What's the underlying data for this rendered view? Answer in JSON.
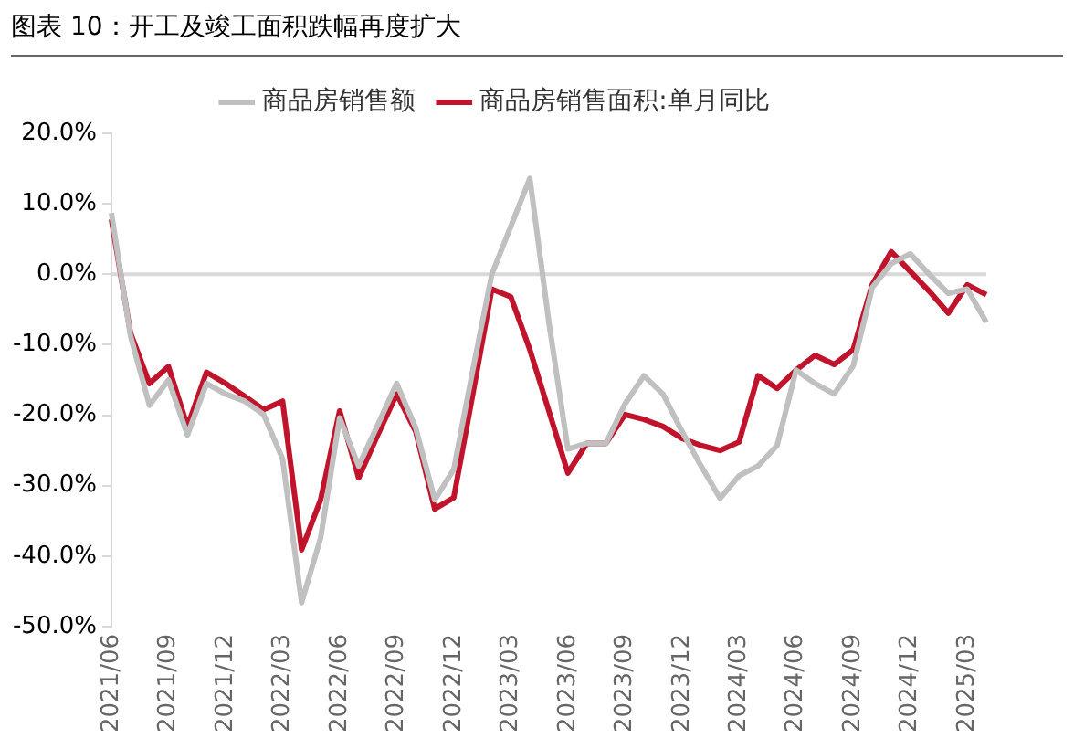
{
  "chart_data": {
    "type": "line",
    "title": "图表 10：开工及竣工面积跌幅再度扩大",
    "categories": [
      "2021/06",
      null,
      null,
      "2021/09",
      null,
      null,
      "2021/12",
      null,
      null,
      "2022/03",
      null,
      null,
      "2022/06",
      null,
      null,
      "2022/09",
      null,
      null,
      "2022/12",
      null,
      null,
      "2023/03",
      null,
      null,
      "2023/06",
      null,
      null,
      "2023/09",
      null,
      null,
      "2023/12",
      null,
      null,
      "2024/03",
      null,
      null,
      "2024/06",
      null,
      null,
      "2024/09",
      null,
      null,
      "2024/12",
      null,
      null,
      "2025/03",
      null
    ],
    "series": [
      {
        "name": "商品房销售额",
        "color": "#c0c0c0",
        "values": [
          8.7,
          -8.7,
          -18.6,
          -15.0,
          -22.8,
          -15.5,
          -17.0,
          -18.0,
          -19.9,
          -26.2,
          -46.6,
          -37.4,
          -20.4,
          -27.2,
          -21.4,
          -15.5,
          -21.8,
          -32.0,
          -27.7,
          -13.6,
          0.0,
          6.8,
          13.6,
          -6.8,
          -24.8,
          -24.0,
          -24.0,
          -18.4,
          -14.4,
          -17.0,
          -22.3,
          -27.2,
          -31.8,
          -28.6,
          -27.2,
          -24.3,
          -13.6,
          -15.5,
          -17.0,
          -13.0,
          -1.9,
          1.5,
          2.9,
          0.0,
          -2.7,
          -2.1,
          -6.8
        ]
      },
      {
        "name": "商品房销售面积:单月同比",
        "color": "#c0142c",
        "values": [
          7.8,
          -8.3,
          -15.5,
          -13.1,
          -21.6,
          -13.9,
          -15.5,
          -17.3,
          -19.2,
          -18.0,
          -39.1,
          -32.0,
          -19.4,
          -28.9,
          -22.8,
          -17.0,
          -22.3,
          -33.3,
          -31.7,
          -17.0,
          -2.1,
          -3.2,
          -10.7,
          -19.4,
          -28.2,
          -24.0,
          -24.0,
          -19.9,
          -20.6,
          -21.6,
          -23.3,
          -24.3,
          -25.0,
          -23.8,
          -14.4,
          -16.2,
          -13.6,
          -11.5,
          -12.8,
          -10.7,
          -1.5,
          3.2,
          0.4,
          -2.4,
          -5.5,
          -1.5,
          -2.9
        ]
      }
    ],
    "ylim": [
      -50,
      20
    ],
    "yticks": [
      {
        "value": 20,
        "label": "20.0%"
      },
      {
        "value": 10,
        "label": "10.0%"
      },
      {
        "value": 0,
        "label": "0.0%"
      },
      {
        "value": -10,
        "label": "-10.0%"
      },
      {
        "value": -20,
        "label": "-20.0%"
      },
      {
        "value": -30,
        "label": "-30.0%"
      },
      {
        "value": -40,
        "label": "-40.0%"
      },
      {
        "value": -50,
        "label": "-50.0%"
      }
    ],
    "ref_lines": [
      {
        "axis": "y",
        "value": 0,
        "color": "#d9d9d9"
      }
    ],
    "grid": false,
    "legend": "top",
    "marker": "none",
    "line_style": "solid"
  }
}
